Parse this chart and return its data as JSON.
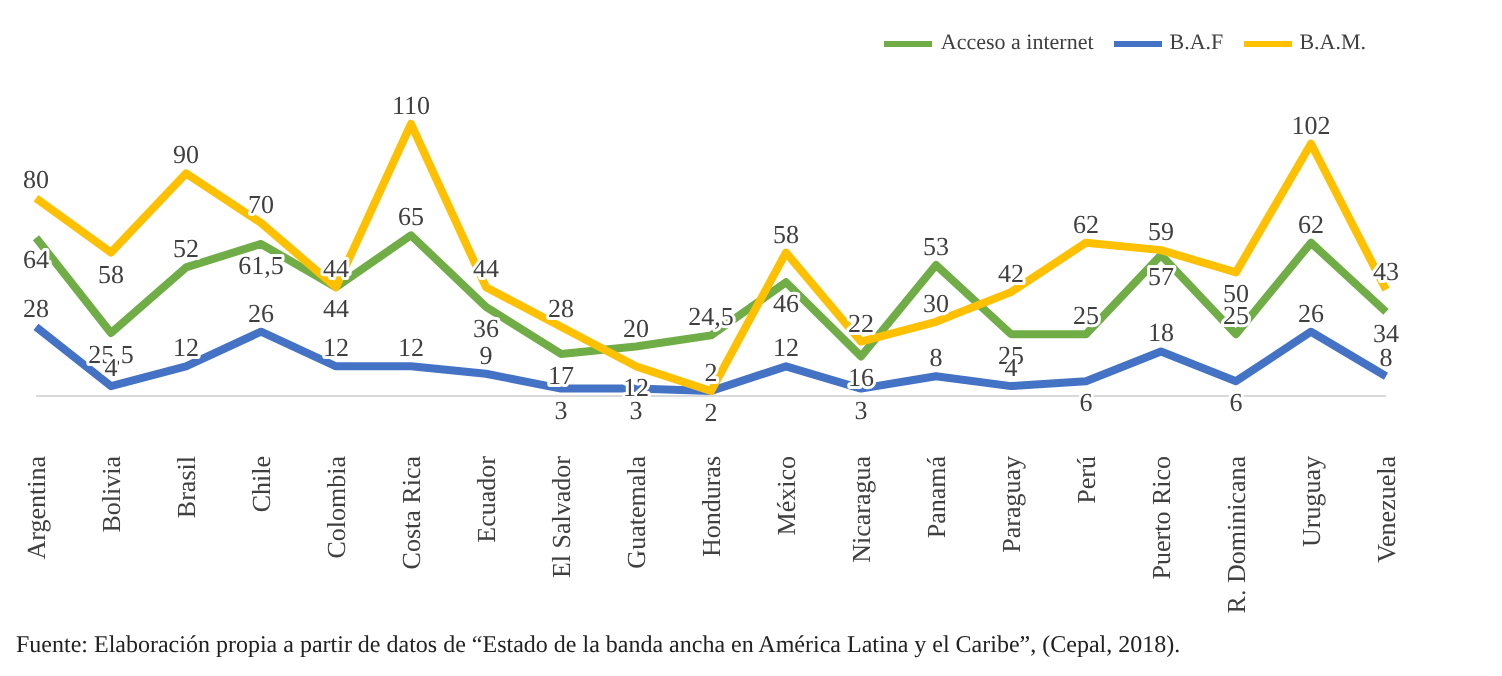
{
  "chart_data": {
    "type": "line",
    "categories": [
      "Argentina",
      "Bolivia",
      "Brasil",
      "Chile",
      "Colombia",
      "Costa Rica",
      "Ecuador",
      "El Salvador",
      "Guatemala",
      "Honduras",
      "México",
      "Nicaragua",
      "Panamá",
      "Paraguay",
      "Perú",
      "Puerto Rico",
      "R. Dominicana",
      "Uruguay",
      "Venezuela"
    ],
    "series": [
      {
        "name": "Acceso a internet",
        "color": "#70ad47",
        "values": [
          64,
          25.5,
          52,
          61.5,
          44,
          65,
          36,
          17,
          20,
          24.5,
          46,
          16,
          53,
          25,
          25,
          57,
          25,
          62,
          34
        ],
        "value_labels": [
          "64",
          "25,5",
          "52",
          "61,5",
          "44",
          "65",
          "36",
          "17",
          "20",
          "24,5",
          "46",
          "16",
          "53",
          "25",
          "25",
          "57",
          "25",
          "62",
          "34"
        ]
      },
      {
        "name": "B.A.F",
        "color": "#4472c4",
        "values": [
          28,
          4,
          12,
          26,
          12,
          12,
          9,
          3,
          3,
          2,
          12,
          3,
          8,
          4,
          6,
          18,
          6,
          26,
          8
        ],
        "value_labels": [
          "28",
          "4",
          "12",
          "26",
          "12",
          "12",
          "9",
          "3",
          "3",
          "2",
          "12",
          "3",
          "8",
          "4",
          "6",
          "18",
          "6",
          "26",
          "8"
        ]
      },
      {
        "name": "B.A.M.",
        "color": "#ffc000",
        "values": [
          80,
          58,
          90,
          70,
          44,
          110,
          44,
          28,
          12,
          2,
          58,
          22,
          30,
          42,
          62,
          59,
          50,
          102,
          43
        ],
        "value_labels": [
          "80",
          "58",
          "90",
          "70",
          "44",
          "110",
          "44",
          "28",
          "12",
          "2",
          "58",
          "22",
          "30",
          "42",
          "62",
          "59",
          "50",
          "102",
          "43"
        ]
      }
    ],
    "legend": "top right",
    "grid": false,
    "marker": "none",
    "line_style": "solid",
    "annotations": [
      "Fuente: Elaboración propia a partir de datos de “Estado de la banda ancha en América Latina y el Caribe”, (Cepal, 2018)."
    ]
  }
}
